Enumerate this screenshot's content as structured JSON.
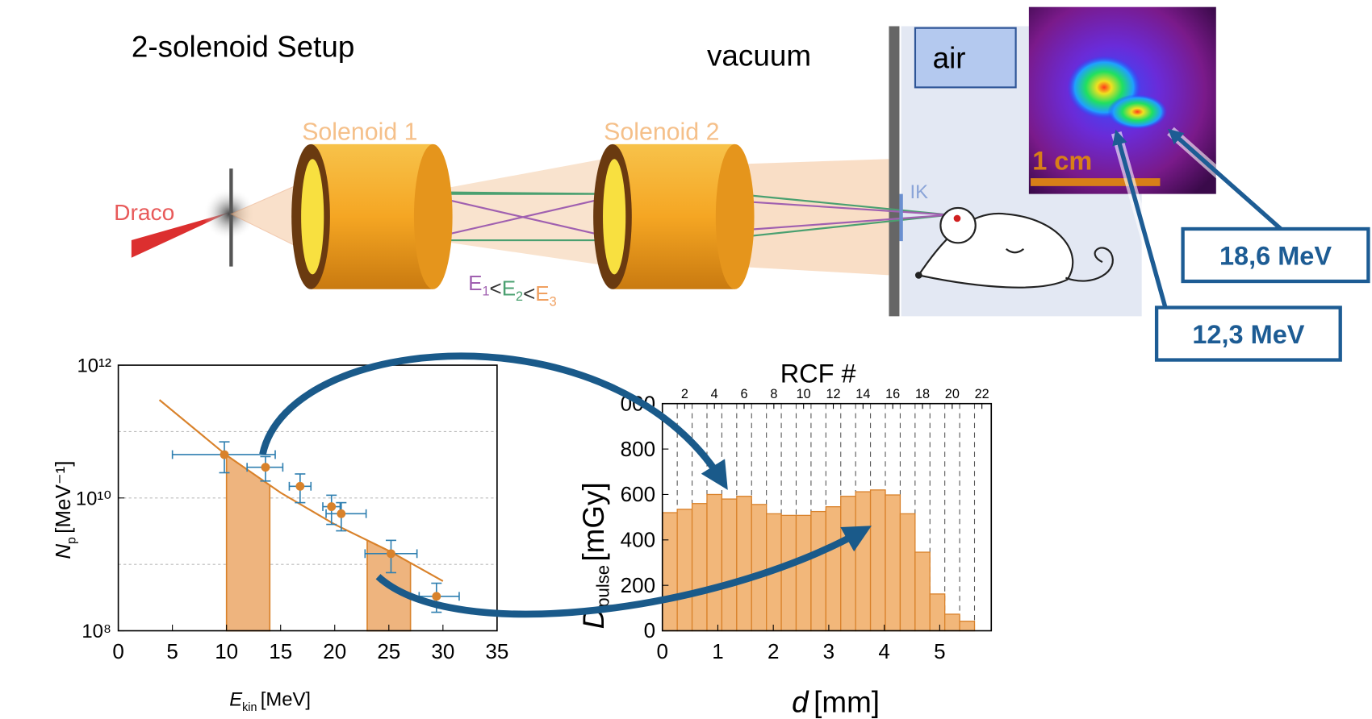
{
  "title": "2-solenoid Setup",
  "labels": {
    "vacuum": "vacuum",
    "air": "air",
    "solenoid1": "Solenoid 1",
    "solenoid2": "Solenoid 2",
    "laser": "Draco",
    "detector": "IK",
    "scale_bar": "1 cm"
  },
  "energy_order": {
    "symbol": "E",
    "subs": [
      "1",
      "2",
      "3"
    ],
    "separator": "<"
  },
  "callouts": [
    "18,6 MeV",
    "12,3 MeV"
  ],
  "chart_data": [
    {
      "type": "scatter",
      "log_y": true,
      "x_label": {
        "symbol": "E",
        "sub": "kin",
        "unit": "[MeV]"
      },
      "y_label": {
        "symbol": "N",
        "sub": "p",
        "unit": "[MeV⁻¹]"
      },
      "xlim": [
        0,
        35
      ],
      "xticks": [
        0,
        5,
        10,
        15,
        20,
        25,
        30,
        35
      ],
      "ylim": [
        100000000,
        1000000000000
      ],
      "yticks": [
        {
          "value": 100000000,
          "label": "10⁸"
        },
        {
          "value": 10000000000,
          "label": "10¹⁰"
        },
        {
          "value": 1000000000000,
          "label": "10¹²"
        }
      ],
      "grid_y": [
        1000000000,
        10000000000,
        100000000000
      ],
      "points": {
        "color": "#d9822b",
        "error_color": "#2f7fb0",
        "x": [
          9.8,
          13.6,
          16.8,
          19.7,
          20.6,
          25.2,
          29.4
        ],
        "values": [
          45000000000,
          29000000000,
          15000000000,
          7400000000,
          5800000000,
          1450000000,
          330000000
        ],
        "x_lower": [
          5,
          11.9,
          15.8,
          18.9,
          19.2,
          22.8,
          27.8
        ],
        "x_upper": [
          14.5,
          15.2,
          17.8,
          20.5,
          22.9,
          27.6,
          31.5
        ],
        "y_lower": [
          24000000000,
          18000000000,
          8500000000,
          4000000000,
          3200000000,
          750000000,
          190000000
        ],
        "y_upper": [
          70000000000,
          42000000000,
          23000000000,
          11000000000,
          8500000000,
          2300000000,
          520000000
        ]
      },
      "fit": {
        "color": "#d9822b",
        "x": [
          3.8,
          10,
          15,
          20,
          25,
          30
        ],
        "values": [
          300000000000,
          44000000000,
          12000000000,
          4000000000,
          1600000000,
          560000000
        ]
      },
      "shaded_x_ranges": [
        [
          10,
          14
        ],
        [
          23,
          27
        ]
      ],
      "shade_color": "#eeb47e"
    },
    {
      "type": "histogram",
      "x_label": {
        "symbol": "d",
        "unit": "[mm]"
      },
      "y_label": {
        "symbol": "D",
        "sub": "pulse",
        "unit": "[mGy]"
      },
      "top_axis_label": "RCF #",
      "bins": [
        0,
        0.268,
        0.536,
        0.804,
        1.072,
        1.34,
        1.608,
        1.876,
        2.144,
        2.412,
        2.68,
        2.948,
        3.216,
        3.484,
        3.752,
        4.02,
        4.288,
        4.556,
        4.824,
        5.092,
        5.36,
        5.628
      ],
      "values": [
        520,
        535,
        560,
        600,
        580,
        592,
        556,
        515,
        508,
        508,
        525,
        546,
        592,
        612,
        620,
        598,
        515,
        346,
        162,
        73,
        42
      ],
      "color": "#f2b77a",
      "edge_color": "#d9822b",
      "xlim": [
        0,
        5.93
      ],
      "xticks": [
        0,
        1,
        2,
        3,
        4,
        5
      ],
      "ylim": [
        0,
        1000
      ],
      "yticks": [
        0,
        200,
        400,
        600,
        800,
        {
          "value": 1000,
          "label": "000"
        }
      ],
      "top_xlim": [
        0.5,
        22.63
      ],
      "top_xticks": [
        2,
        4,
        6,
        8,
        10,
        12,
        14,
        16,
        18,
        20,
        22
      ]
    }
  ]
}
